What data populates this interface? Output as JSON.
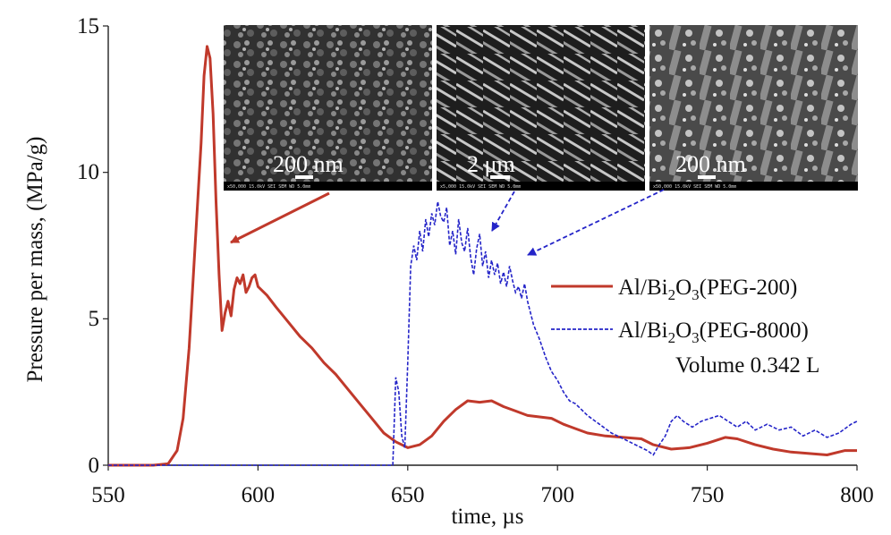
{
  "chart_data": {
    "type": "line",
    "title": "",
    "xlabel": "time, µs",
    "ylabel": "Pressure per mass, (MPa/g)",
    "xlim": [
      550,
      800
    ],
    "ylim": [
      0,
      15
    ],
    "xticks": [
      "550",
      "600",
      "650",
      "700",
      "750",
      "800"
    ],
    "yticks": [
      "0",
      "5",
      "10",
      "15"
    ],
    "grid": false,
    "legend_position": "right",
    "annotation": "Volume 0.342 L",
    "series": [
      {
        "name_main": "Al/Bi",
        "name_sub": "2",
        "name_mid": "O",
        "name_sub2": "3",
        "name_tail": "(PEG-200)",
        "color": "#c0392b",
        "style": "solid",
        "points": [
          [
            550,
            0
          ],
          [
            565,
            0
          ],
          [
            570,
            0.05
          ],
          [
            573,
            0.5
          ],
          [
            575,
            1.6
          ],
          [
            577,
            4.0
          ],
          [
            579,
            7.5
          ],
          [
            581,
            11.0
          ],
          [
            582,
            13.3
          ],
          [
            583,
            14.3
          ],
          [
            584,
            13.9
          ],
          [
            585,
            12.0
          ],
          [
            586,
            9.0
          ],
          [
            587,
            6.5
          ],
          [
            588,
            4.6
          ],
          [
            589,
            5.2
          ],
          [
            590,
            5.6
          ],
          [
            591,
            5.1
          ],
          [
            592,
            6.0
          ],
          [
            593,
            6.4
          ],
          [
            594,
            6.2
          ],
          [
            595,
            6.5
          ],
          [
            596,
            5.9
          ],
          [
            597,
            6.1
          ],
          [
            598,
            6.4
          ],
          [
            599,
            6.5
          ],
          [
            600,
            6.1
          ],
          [
            603,
            5.8
          ],
          [
            606,
            5.4
          ],
          [
            610,
            4.9
          ],
          [
            614,
            4.4
          ],
          [
            618,
            4.0
          ],
          [
            622,
            3.5
          ],
          [
            626,
            3.1
          ],
          [
            630,
            2.6
          ],
          [
            634,
            2.1
          ],
          [
            638,
            1.6
          ],
          [
            642,
            1.1
          ],
          [
            646,
            0.8
          ],
          [
            650,
            0.6
          ],
          [
            654,
            0.7
          ],
          [
            658,
            1.0
          ],
          [
            662,
            1.5
          ],
          [
            666,
            1.9
          ],
          [
            670,
            2.2
          ],
          [
            674,
            2.15
          ],
          [
            678,
            2.2
          ],
          [
            682,
            2.0
          ],
          [
            686,
            1.85
          ],
          [
            690,
            1.7
          ],
          [
            694,
            1.65
          ],
          [
            698,
            1.6
          ],
          [
            702,
            1.4
          ],
          [
            706,
            1.25
          ],
          [
            710,
            1.1
          ],
          [
            716,
            1.0
          ],
          [
            722,
            0.95
          ],
          [
            728,
            0.9
          ],
          [
            732,
            0.7
          ],
          [
            738,
            0.55
          ],
          [
            744,
            0.6
          ],
          [
            750,
            0.75
          ],
          [
            756,
            0.95
          ],
          [
            760,
            0.9
          ],
          [
            766,
            0.7
          ],
          [
            772,
            0.55
          ],
          [
            778,
            0.45
          ],
          [
            784,
            0.4
          ],
          [
            790,
            0.35
          ],
          [
            796,
            0.5
          ],
          [
            800,
            0.5
          ]
        ]
      },
      {
        "name_main": "Al/Bi",
        "name_sub": "2",
        "name_mid": "O",
        "name_sub2": "3",
        "name_tail": "(PEG-8000)",
        "color": "#2424c8",
        "style": "dashed",
        "points": [
          [
            550,
            0
          ],
          [
            645,
            0
          ],
          [
            646,
            3.0
          ],
          [
            647,
            2.5
          ],
          [
            648,
            1.0
          ],
          [
            649,
            0.6
          ],
          [
            650,
            3.5
          ],
          [
            651,
            6.8
          ],
          [
            652,
            7.5
          ],
          [
            653,
            7.0
          ],
          [
            654,
            8.0
          ],
          [
            655,
            7.3
          ],
          [
            656,
            8.4
          ],
          [
            657,
            7.8
          ],
          [
            658,
            8.6
          ],
          [
            659,
            8.2
          ],
          [
            660,
            9.0
          ],
          [
            661,
            8.5
          ],
          [
            662,
            8.3
          ],
          [
            663,
            8.8
          ],
          [
            664,
            7.5
          ],
          [
            665,
            8.0
          ],
          [
            666,
            7.2
          ],
          [
            667,
            8.4
          ],
          [
            668,
            7.6
          ],
          [
            669,
            7.3
          ],
          [
            670,
            8.1
          ],
          [
            671,
            7.1
          ],
          [
            672,
            6.5
          ],
          [
            673,
            7.4
          ],
          [
            674,
            7.9
          ],
          [
            675,
            6.8
          ],
          [
            676,
            7.3
          ],
          [
            677,
            6.4
          ],
          [
            678,
            7.0
          ],
          [
            679,
            6.5
          ],
          [
            680,
            6.9
          ],
          [
            681,
            6.2
          ],
          [
            682,
            6.6
          ],
          [
            683,
            6.1
          ],
          [
            684,
            6.8
          ],
          [
            685,
            6.3
          ],
          [
            686,
            5.9
          ],
          [
            687,
            6.1
          ],
          [
            688,
            5.7
          ],
          [
            689,
            6.2
          ],
          [
            690,
            5.6
          ],
          [
            692,
            4.8
          ],
          [
            694,
            4.3
          ],
          [
            696,
            3.7
          ],
          [
            698,
            3.2
          ],
          [
            700,
            2.9
          ],
          [
            702,
            2.5
          ],
          [
            704,
            2.2
          ],
          [
            706,
            2.1
          ],
          [
            708,
            1.9
          ],
          [
            710,
            1.7
          ],
          [
            714,
            1.4
          ],
          [
            718,
            1.1
          ],
          [
            722,
            0.9
          ],
          [
            726,
            0.7
          ],
          [
            730,
            0.5
          ],
          [
            732,
            0.35
          ],
          [
            734,
            0.7
          ],
          [
            736,
            1.0
          ],
          [
            738,
            1.5
          ],
          [
            740,
            1.7
          ],
          [
            742,
            1.5
          ],
          [
            745,
            1.3
          ],
          [
            748,
            1.5
          ],
          [
            751,
            1.6
          ],
          [
            754,
            1.7
          ],
          [
            757,
            1.5
          ],
          [
            760,
            1.3
          ],
          [
            763,
            1.5
          ],
          [
            766,
            1.2
          ],
          [
            770,
            1.4
          ],
          [
            774,
            1.2
          ],
          [
            778,
            1.3
          ],
          [
            782,
            1.0
          ],
          [
            786,
            1.2
          ],
          [
            790,
            0.95
          ],
          [
            794,
            1.1
          ],
          [
            798,
            1.4
          ],
          [
            800,
            1.5
          ]
        ]
      }
    ],
    "insets": [
      {
        "scale_label": "200 nm"
      },
      {
        "scale_label": "2 μm"
      },
      {
        "scale_label": "200 nm"
      }
    ]
  }
}
